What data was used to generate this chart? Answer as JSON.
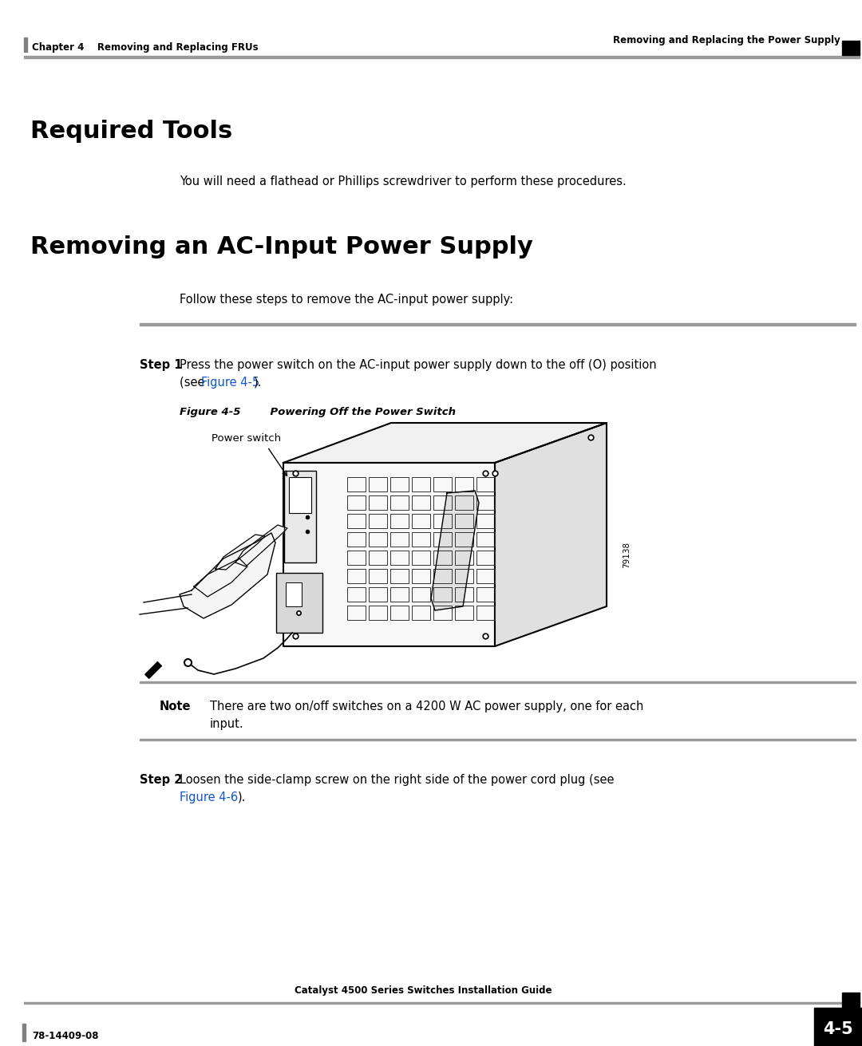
{
  "bg_color": "#ffffff",
  "header_left_bar_color": "#808080",
  "header_right_square_color": "#000000",
  "footer_right_square_color": "#000000",
  "header_line_color": "#aaaaaa",
  "footer_line_color": "#aaaaaa",
  "header_left_text": "Chapter 4    Removing and Replacing FRUs",
  "header_right_text": "Removing and Replacing the Power Supply",
  "footer_left_text": "78-14409-08",
  "footer_center_text": "Catalyst 4500 Series Switches Installation Guide",
  "footer_page": "4-5",
  "section1_title": "Required Tools",
  "section1_body": "You will need a flathead or Phillips screwdriver to perform these procedures.",
  "section2_title": "Removing an AC-Input Power Supply",
  "section2_intro": "Follow these steps to remove the AC-input power supply:",
  "step1_label": "Step 1",
  "step1_text1": "Press the power switch on the AC-input power supply down to the off (O) position",
  "step1_text2_prefix": "(see ",
  "step1_link": "Figure 4-5",
  "step1_text2_suffix": ").",
  "figure_label": "Figure 4-5",
  "figure_title": "        Powering Off the Power Switch",
  "figure_note_label": "Note",
  "figure_note_text1": "There are two on/off switches on a 4200 W AC power supply, one for each",
  "figure_note_text2": "input.",
  "step2_label": "Step 2",
  "step2_text1": "Loosen the side-clamp screw on the right side of the power cord plug (see",
  "step2_link": "Figure 4-6",
  "step2_text2_suffix": ").",
  "link_color": "#1155CC",
  "figure_id": "79138"
}
